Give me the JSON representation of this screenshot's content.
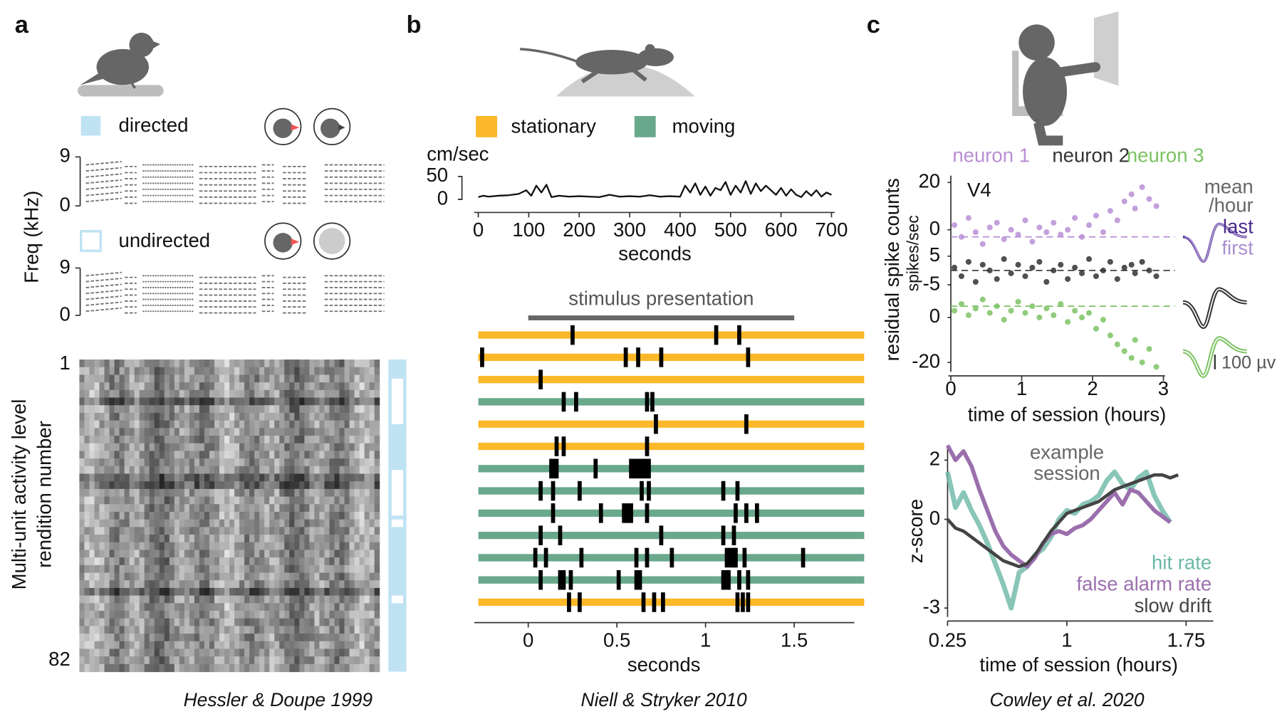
{
  "panels": [
    {
      "label": "a",
      "citation": "Hessler & Doupe 1999"
    },
    {
      "label": "b",
      "citation": "Niell & Stryker 2010"
    },
    {
      "label": "c",
      "citation": "Cowley et al. 2020"
    }
  ],
  "chart_data": [
    {
      "type": "spectrogram",
      "ylabel": "Freq (kHz)",
      "ylim": [
        0,
        9
      ],
      "yticks": [
        0,
        9
      ],
      "series": [
        {
          "name": "directed",
          "color": "#bfe3f3",
          "fill": true
        },
        {
          "name": "undirected",
          "color": "#bfe3f3",
          "fill": false
        }
      ]
    },
    {
      "type": "heatmap",
      "title": "Multi-unit activity level",
      "ylabel": "rendition number",
      "ylim": [
        1,
        82
      ],
      "yticks": [
        1,
        82
      ],
      "color": "#bfe3f3",
      "undirected_renditions": [
        [
          6,
          17
        ],
        [
          30,
          41
        ],
        [
          43,
          44
        ],
        [
          63,
          64
        ]
      ]
    },
    {
      "type": "line",
      "ylabel": "cm/sec",
      "xlabel": "seconds",
      "color": "#111111",
      "xlim": [
        0,
        700
      ],
      "xticks": [
        0,
        100,
        200,
        300,
        400,
        500,
        600,
        700
      ],
      "ylim": [
        0,
        50
      ],
      "yticks": [
        0,
        50
      ],
      "x": [
        0,
        10,
        20,
        40,
        60,
        80,
        95,
        105,
        115,
        125,
        135,
        145,
        160,
        180,
        200,
        220,
        240,
        260,
        280,
        300,
        320,
        340,
        360,
        380,
        400,
        410,
        420,
        430,
        440,
        450,
        460,
        470,
        480,
        490,
        500,
        510,
        520,
        530,
        540,
        550,
        560,
        570,
        580,
        590,
        600,
        610,
        620,
        630,
        640,
        650,
        660,
        670,
        680,
        690,
        700
      ],
      "values": [
        5,
        8,
        6,
        8,
        9,
        12,
        20,
        8,
        30,
        15,
        32,
        5,
        8,
        6,
        7,
        6,
        5,
        10,
        6,
        7,
        6,
        9,
        6,
        7,
        6,
        30,
        15,
        35,
        10,
        28,
        8,
        25,
        20,
        38,
        10,
        30,
        15,
        40,
        12,
        35,
        18,
        30,
        20,
        10,
        25,
        8,
        22,
        10,
        5,
        18,
        8,
        20,
        6,
        15,
        10
      ]
    },
    {
      "type": "raster",
      "xlabel": "seconds",
      "xlim": [
        -0.3,
        1.83
      ],
      "xticks": [
        0,
        0.5,
        1,
        1.5
      ],
      "annotation": "stimulus presentation",
      "stimulus": [
        0,
        1.5
      ],
      "conditions": [
        {
          "name": "stationary",
          "color": "#fbb829"
        },
        {
          "name": "moving",
          "color": "#6aa88c"
        }
      ],
      "rows": [
        {
          "condition": 0,
          "spikes": [
            0.25,
            1.06,
            1.19
          ]
        },
        {
          "condition": 0,
          "spikes": [
            -0.26,
            0.55,
            0.62,
            0.75,
            1.24
          ]
        },
        {
          "condition": 0,
          "spikes": [
            0.07
          ]
        },
        {
          "condition": 1,
          "spikes": [
            0.2,
            0.27,
            0.67,
            0.7
          ]
        },
        {
          "condition": 0,
          "spikes": [
            0.72,
            1.23
          ]
        },
        {
          "condition": 0,
          "spikes": [
            0.16,
            0.2,
            0.67
          ]
        },
        {
          "condition": 1,
          "spikes": [
            0.13,
            0.15,
            0.16,
            0.38,
            0.58,
            0.6,
            0.61,
            0.63,
            0.65,
            0.66,
            0.68
          ]
        },
        {
          "condition": 1,
          "spikes": [
            0.07,
            0.14,
            0.29,
            0.64,
            0.68,
            1.1,
            1.18
          ]
        },
        {
          "condition": 1,
          "spikes": [
            0.14,
            0.41,
            0.54,
            0.56,
            0.58,
            0.67,
            1.17,
            1.23,
            1.29
          ]
        },
        {
          "condition": 1,
          "spikes": [
            0.07,
            0.18,
            0.75,
            1.1,
            1.16
          ]
        },
        {
          "condition": 1,
          "spikes": [
            0.04,
            0.1,
            0.3,
            0.61,
            0.67,
            0.81,
            1.12,
            1.14,
            1.16,
            1.17,
            1.22,
            1.55
          ]
        },
        {
          "condition": 1,
          "spikes": [
            0.07,
            0.18,
            0.2,
            0.24,
            0.51,
            0.61,
            0.63,
            1.1,
            1.12,
            1.13,
            1.19,
            1.24
          ]
        },
        {
          "condition": 0,
          "spikes": [
            0.23,
            0.29,
            0.65,
            0.71,
            0.76,
            1.18,
            1.21,
            1.24
          ]
        }
      ]
    },
    {
      "type": "scatter",
      "ylabel": "residual spike counts",
      "yunit": "spikes/sec",
      "annotation": "V4",
      "xlabel": "time of session (hours)",
      "xlim": [
        0,
        3
      ],
      "xticks": [
        0,
        1,
        2,
        3
      ],
      "waveform_legend": [
        {
          "text": "mean",
          "color": "#666666"
        },
        {
          "text": "/hour",
          "color": "#666666"
        },
        {
          "text": "last",
          "color": "#4b2a8c"
        },
        {
          "text": "first",
          "color": "#a98fd0"
        }
      ],
      "scale_bar": "100 µv",
      "series": [
        {
          "name": "neuron 1",
          "color": "#b98fd6",
          "ylim": [
            -12,
            27
          ],
          "yticks": [
            0,
            20
          ],
          "baseline": -3,
          "x": [
            0.05,
            0.15,
            0.25,
            0.35,
            0.45,
            0.55,
            0.65,
            0.75,
            0.85,
            0.95,
            1.05,
            1.15,
            1.25,
            1.35,
            1.45,
            1.55,
            1.65,
            1.75,
            1.85,
            1.95,
            2.05,
            2.15,
            2.25,
            2.35,
            2.45,
            2.55,
            2.6,
            2.7,
            2.8,
            2.9
          ],
          "values": [
            2,
            -3,
            5,
            -1,
            -6,
            1,
            3,
            -4,
            0,
            -2,
            4,
            -5,
            1,
            -1,
            3,
            -2,
            0,
            5,
            -3,
            2,
            6,
            -1,
            8,
            4,
            12,
            15,
            9,
            18,
            13,
            10
          ]
        },
        {
          "name": "neuron 2",
          "color": "#333333",
          "ylim": [
            -10,
            10
          ],
          "yticks": [
            -5,
            5
          ],
          "baseline": 0,
          "x": [
            0.05,
            0.15,
            0.25,
            0.35,
            0.45,
            0.55,
            0.65,
            0.75,
            0.85,
            0.95,
            1.05,
            1.15,
            1.25,
            1.35,
            1.45,
            1.55,
            1.65,
            1.75,
            1.85,
            1.95,
            2.05,
            2.15,
            2.25,
            2.35,
            2.45,
            2.55,
            2.6,
            2.7,
            2.8,
            2.9
          ],
          "values": [
            1,
            -2,
            3,
            -4,
            2,
            0,
            -3,
            4,
            -1,
            2,
            -2,
            1,
            3,
            -4,
            0,
            2,
            -3,
            1,
            -1,
            4,
            -2,
            0,
            3,
            -3,
            1,
            2,
            -1,
            3,
            0,
            -2
          ]
        },
        {
          "name": "neuron 3",
          "color": "#7cc364",
          "ylim": [
            -26,
            14
          ],
          "yticks": [
            -20,
            0
          ],
          "baseline": 5,
          "x": [
            0.05,
            0.15,
            0.25,
            0.35,
            0.45,
            0.55,
            0.65,
            0.75,
            0.85,
            0.95,
            1.05,
            1.15,
            1.25,
            1.35,
            1.45,
            1.55,
            1.65,
            1.75,
            1.85,
            1.95,
            2.05,
            2.15,
            2.25,
            2.35,
            2.45,
            2.55,
            2.6,
            2.7,
            2.8,
            2.9
          ],
          "values": [
            3,
            6,
            1,
            4,
            8,
            2,
            5,
            -1,
            3,
            7,
            2,
            5,
            0,
            4,
            1,
            6,
            -2,
            3,
            0,
            2,
            -5,
            -1,
            -8,
            -12,
            -15,
            -18,
            -10,
            -20,
            -14,
            -22
          ]
        }
      ]
    },
    {
      "type": "line",
      "annotation": [
        "example",
        "session"
      ],
      "ylabel": "z-score",
      "xlabel": "time of session (hours)",
      "xlim": [
        0.25,
        1.9
      ],
      "xticks": [
        0.25,
        1,
        1.75
      ],
      "ylim": [
        -3.3,
        2.5
      ],
      "yticks": [
        2,
        0,
        -3
      ],
      "series": [
        {
          "name": "hit rate",
          "color": "#6bb8a6",
          "linewidth": 6,
          "x": [
            0.25,
            0.3,
            0.35,
            0.4,
            0.45,
            0.5,
            0.55,
            0.6,
            0.65,
            0.7,
            0.75,
            0.8,
            0.85,
            0.9,
            0.95,
            1.0,
            1.05,
            1.1,
            1.15,
            1.2,
            1.25,
            1.3,
            1.35,
            1.4,
            1.45,
            1.5,
            1.55,
            1.6,
            1.65
          ],
          "values": [
            1.6,
            0.4,
            0.9,
            0.3,
            -0.2,
            -0.8,
            -1.5,
            -2.2,
            -3.0,
            -1.8,
            -1.6,
            -1.2,
            -1.0,
            -0.6,
            0.0,
            0.3,
            0.2,
            0.5,
            0.6,
            0.8,
            1.3,
            1.6,
            1.2,
            1.0,
            1.4,
            1.6,
            0.8,
            0.3,
            -0.1
          ]
        },
        {
          "name": "false alarm rate",
          "color": "#9b6fad",
          "linewidth": 5,
          "x": [
            0.25,
            0.3,
            0.35,
            0.4,
            0.45,
            0.5,
            0.55,
            0.6,
            0.65,
            0.7,
            0.75,
            0.8,
            0.85,
            0.9,
            0.95,
            1.0,
            1.05,
            1.1,
            1.15,
            1.2,
            1.25,
            1.3,
            1.35,
            1.4,
            1.45,
            1.5,
            1.55,
            1.6,
            1.65
          ],
          "values": [
            2.5,
            2.0,
            2.3,
            1.8,
            1.0,
            0.3,
            -0.4,
            -0.9,
            -1.2,
            -1.4,
            -1.6,
            -1.3,
            -0.8,
            -0.5,
            -0.4,
            -0.5,
            -0.3,
            -0.2,
            0.0,
            0.3,
            0.6,
            0.9,
            0.5,
            1.0,
            0.9,
            0.6,
            0.3,
            0.1,
            -0.1
          ]
        },
        {
          "name": "slow drift",
          "color": "#444444",
          "linewidth": 4,
          "x": [
            0.25,
            0.3,
            0.35,
            0.4,
            0.45,
            0.5,
            0.55,
            0.6,
            0.65,
            0.7,
            0.75,
            0.8,
            0.85,
            0.9,
            0.95,
            1.0,
            1.05,
            1.1,
            1.15,
            1.2,
            1.25,
            1.3,
            1.35,
            1.4,
            1.45,
            1.5,
            1.55,
            1.6,
            1.65,
            1.7
          ],
          "values": [
            0,
            -0.3,
            -0.4,
            -0.6,
            -0.8,
            -1.0,
            -1.2,
            -1.4,
            -1.5,
            -1.6,
            -1.5,
            -1.2,
            -0.8,
            -0.4,
            -0.1,
            0.2,
            0.3,
            0.4,
            0.5,
            0.6,
            0.8,
            1.0,
            1.1,
            1.2,
            1.3,
            1.4,
            1.5,
            1.5,
            1.4,
            1.5
          ]
        }
      ]
    }
  ]
}
